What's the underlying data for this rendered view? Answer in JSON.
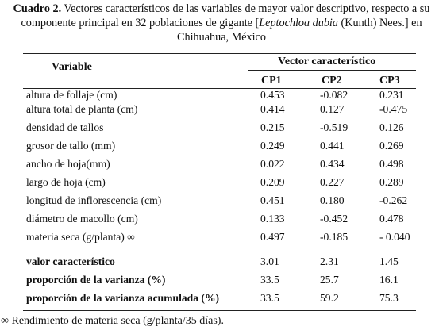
{
  "caption": {
    "label": "Cuadro 2.",
    "text_part1": " Vectores característicos de las variables de mayor valor descriptivo, respecto a su componente principal en 32 poblaciones de gigante [",
    "species": "Leptochloa dubia",
    "text_part2": " (Kunth) Nees.] en Chihuahua, México"
  },
  "table": {
    "variable_header": "Variable",
    "group_header": "Vector característico",
    "columns": [
      "CP1",
      "CP2",
      "CP3"
    ],
    "rows": [
      {
        "label": "altura de follaje (cm)",
        "values": [
          "0.453",
          "-0.082",
          "0.231"
        ]
      },
      {
        "label": "altura total de planta (cm)",
        "values": [
          "0.414",
          "0.127",
          "-0.475"
        ]
      },
      {
        "label": "densidad de tallos",
        "values": [
          "0.215",
          "-0.519",
          "0.126"
        ]
      },
      {
        "label": "grosor de tallo (mm)",
        "values": [
          "0.249",
          "0.441",
          "0.269"
        ]
      },
      {
        "label": "ancho de hoja(mm)",
        "values": [
          "0.022",
          "0.434",
          "0.498"
        ]
      },
      {
        "label": "largo de hoja (cm)",
        "values": [
          "0.209",
          "0.227",
          "0.289"
        ]
      },
      {
        "label": "longitud de inflorescencia (cm)",
        "values": [
          "0.451",
          "0.180",
          "-0.262"
        ]
      },
      {
        "label": "diámetro de macollo (cm)",
        "values": [
          "0.133",
          "-0.452",
          "0.478"
        ]
      },
      {
        "label": "materia seca (g/planta) ∞",
        "values": [
          "0.497",
          "-0.185",
          "- 0.040"
        ]
      }
    ],
    "summary_rows": [
      {
        "label": "valor característico",
        "values": [
          "3.01",
          "2.31",
          "1.45"
        ]
      },
      {
        "label": "proporción de la varianza (%)",
        "values": [
          "33.5",
          "25.7",
          "16.1"
        ]
      },
      {
        "label": "proporción de la varianza acumulada (%)",
        "values": [
          "33.5",
          "59.2",
          "75.3"
        ]
      }
    ]
  },
  "footnote": "∞ Rendimiento de materia seca (g/planta/35 días)."
}
